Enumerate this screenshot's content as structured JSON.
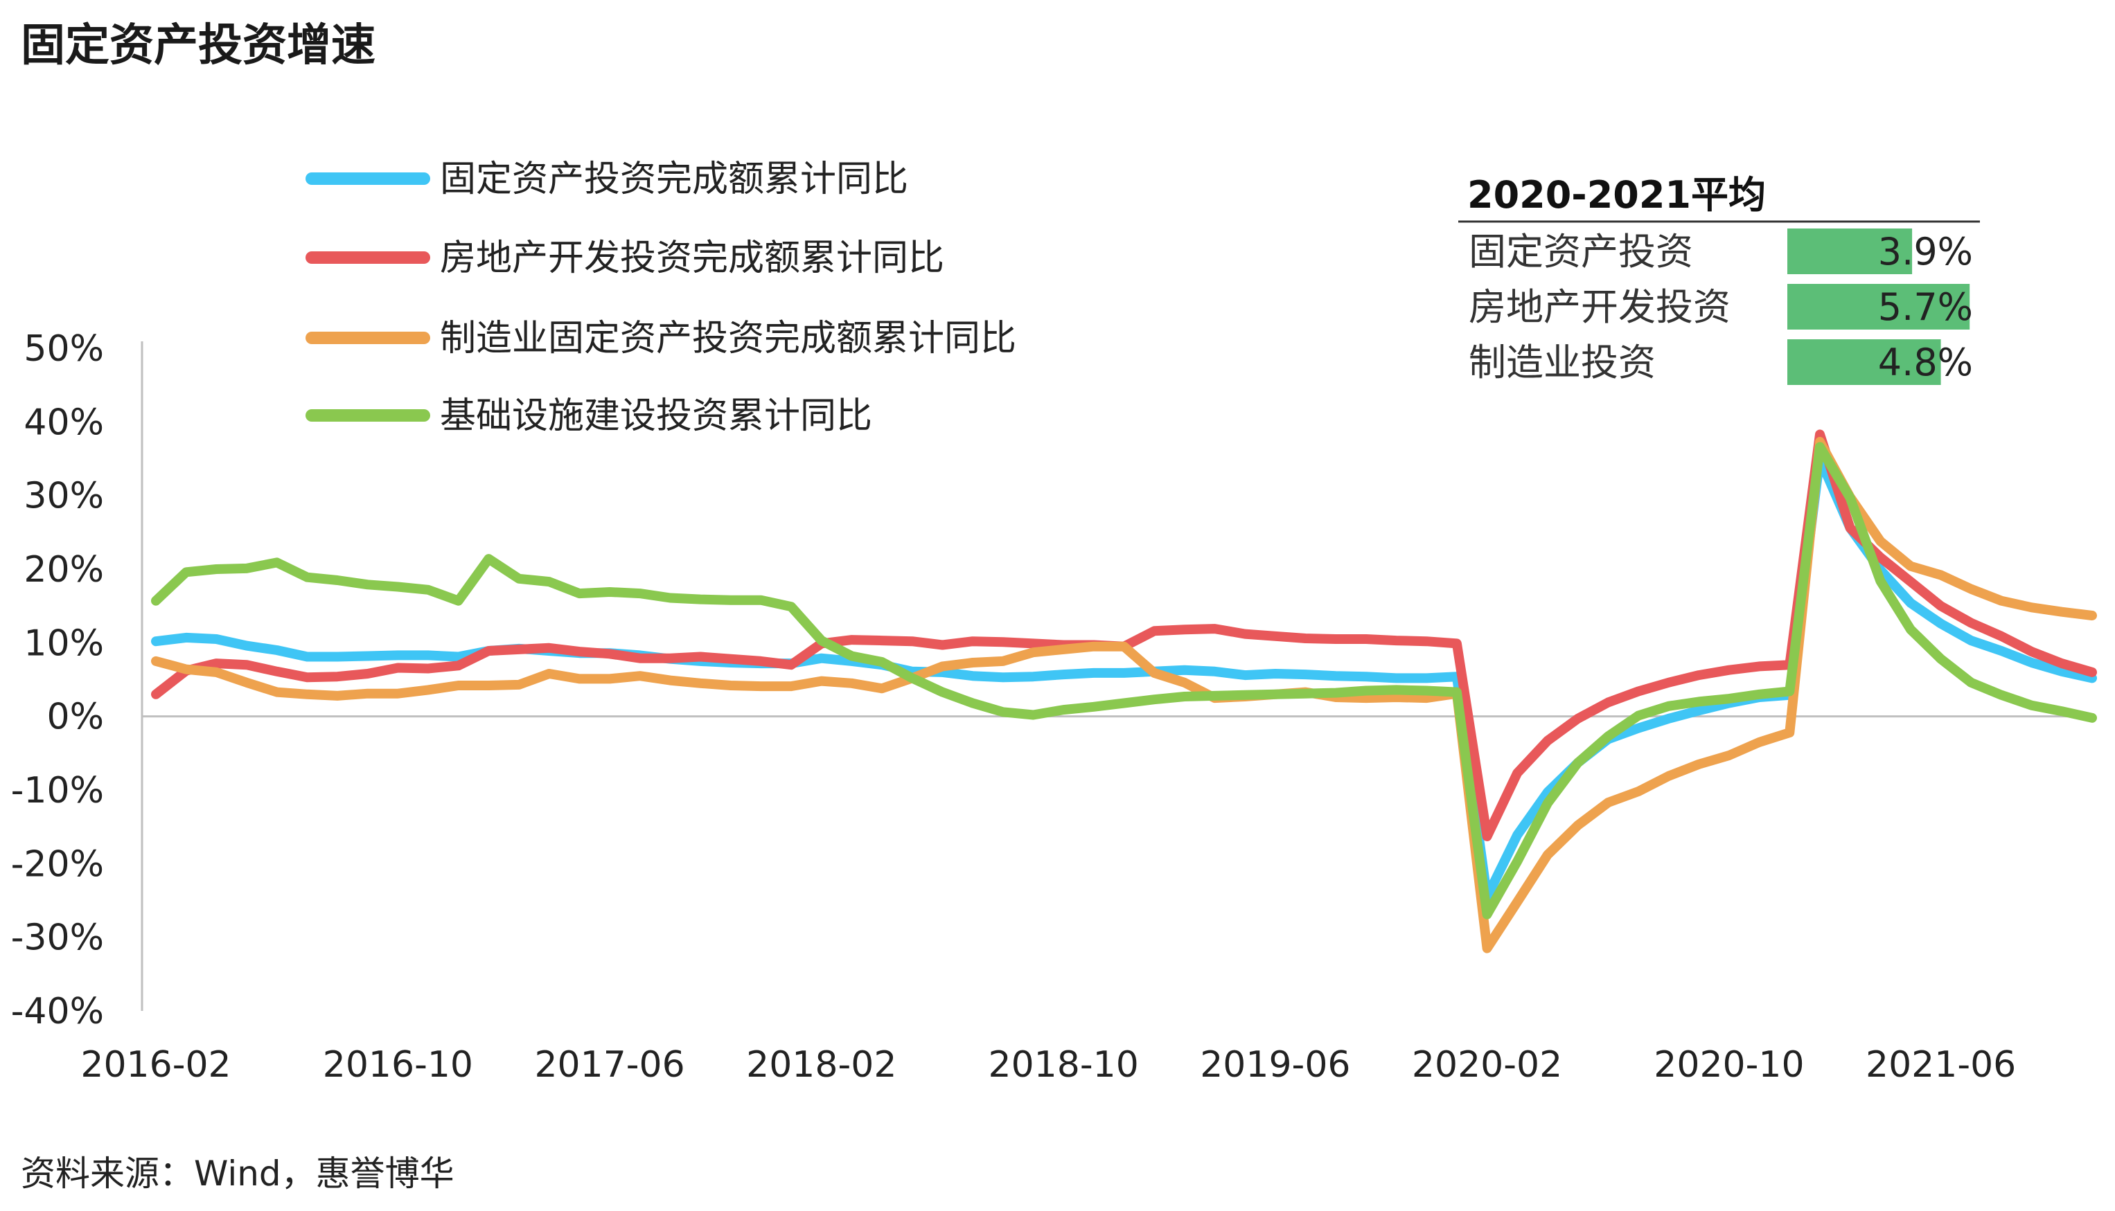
{
  "page": {
    "title": "固定资产投资增速",
    "source": "资料来源：Wind，惠誉博华"
  },
  "chart_data": {
    "type": "line",
    "title": "固定资产投资增速",
    "ylim": [
      -40,
      50
    ],
    "yticks": [
      50,
      40,
      30,
      20,
      10,
      0,
      -10,
      -20,
      -30,
      -40
    ],
    "ytick_labels": [
      "50%",
      "40%",
      "30%",
      "20%",
      "10%",
      "0%",
      "-10%",
      "-20%",
      "-30%",
      "-40%"
    ],
    "xtick_labels": [
      "2016-02",
      "2016-10",
      "2017-06",
      "2018-02",
      "2018-10",
      "2019-06",
      "2020-02",
      "2020-10",
      "2021-06"
    ],
    "x_start": "2016-02",
    "x_end": "2021-11",
    "grid": false,
    "legend_position": "top-left",
    "x": [
      "2016-02",
      "2016-03",
      "2016-04",
      "2016-05",
      "2016-06",
      "2016-07",
      "2016-08",
      "2016-09",
      "2016-10",
      "2016-11",
      "2016-12",
      "2017-02",
      "2017-03",
      "2017-04",
      "2017-05",
      "2017-06",
      "2017-07",
      "2017-08",
      "2017-09",
      "2017-10",
      "2017-11",
      "2017-12",
      "2018-02",
      "2018-03",
      "2018-04",
      "2018-05",
      "2018-06",
      "2018-07",
      "2018-08",
      "2018-09",
      "2018-10",
      "2018-11",
      "2018-12",
      "2019-02",
      "2019-03",
      "2019-04",
      "2019-05",
      "2019-06",
      "2019-07",
      "2019-08",
      "2019-09",
      "2019-10",
      "2019-11",
      "2019-12",
      "2020-02",
      "2020-03",
      "2020-04",
      "2020-05",
      "2020-06",
      "2020-07",
      "2020-08",
      "2020-09",
      "2020-10",
      "2020-11",
      "2020-12",
      "2021-02",
      "2021-03",
      "2021-04",
      "2021-05",
      "2021-06",
      "2021-07",
      "2021-08",
      "2021-09",
      "2021-10",
      "2021-11"
    ],
    "series": [
      {
        "name": "固定资产投资完成额累计同比",
        "color": "#3fc5f5",
        "values": [
          10.2,
          10.7,
          10.5,
          9.6,
          9.0,
          8.1,
          8.1,
          8.2,
          8.3,
          8.3,
          8.1,
          8.9,
          9.2,
          8.9,
          8.6,
          8.6,
          8.3,
          7.8,
          7.5,
          7.3,
          7.2,
          7.2,
          7.9,
          7.5,
          7.0,
          6.1,
          6.0,
          5.5,
          5.3,
          5.4,
          5.7,
          5.9,
          5.9,
          6.1,
          6.3,
          6.1,
          5.6,
          5.8,
          5.7,
          5.5,
          5.4,
          5.2,
          5.2,
          5.4,
          -24.5,
          -16.1,
          -10.3,
          -6.3,
          -3.1,
          -1.6,
          -0.3,
          0.8,
          1.8,
          2.6,
          2.9,
          35.0,
          25.6,
          19.9,
          15.4,
          12.6,
          10.3,
          8.9,
          7.3,
          6.1,
          5.2
        ]
      },
      {
        "name": "房地产开发投资完成额累计同比",
        "color": "#e8585a",
        "values": [
          3.0,
          6.2,
          7.2,
          7.0,
          6.1,
          5.3,
          5.4,
          5.8,
          6.6,
          6.5,
          6.9,
          8.9,
          9.1,
          9.3,
          8.8,
          8.5,
          7.9,
          7.9,
          8.1,
          7.8,
          7.5,
          7.0,
          9.9,
          10.4,
          10.3,
          10.2,
          9.7,
          10.2,
          10.1,
          9.9,
          9.7,
          9.7,
          9.5,
          11.6,
          11.8,
          11.9,
          11.2,
          10.9,
          10.6,
          10.5,
          10.5,
          10.3,
          10.2,
          9.9,
          -16.3,
          -7.7,
          -3.3,
          -0.3,
          1.9,
          3.4,
          4.6,
          5.6,
          6.3,
          6.8,
          7.0,
          38.3,
          25.6,
          21.6,
          18.3,
          15.0,
          12.7,
          10.9,
          8.8,
          7.2,
          6.0
        ]
      },
      {
        "name": "制造业固定资产投资完成额累计同比",
        "color": "#eea24e",
        "values": [
          7.5,
          6.4,
          6.0,
          4.6,
          3.3,
          3.0,
          2.8,
          3.1,
          3.1,
          3.6,
          4.2,
          4.2,
          4.3,
          5.8,
          5.1,
          5.1,
          5.5,
          4.9,
          4.5,
          4.2,
          4.1,
          4.1,
          4.8,
          4.5,
          3.8,
          5.2,
          6.8,
          7.3,
          7.5,
          8.7,
          9.1,
          9.5,
          9.5,
          5.9,
          4.6,
          2.5,
          2.7,
          3.0,
          3.3,
          2.6,
          2.5,
          2.6,
          2.5,
          3.1,
          -31.5,
          -25.2,
          -18.8,
          -14.8,
          -11.7,
          -10.2,
          -8.1,
          -6.5,
          -5.3,
          -3.5,
          -2.2,
          37.3,
          29.8,
          23.8,
          20.4,
          19.2,
          17.3,
          15.7,
          14.8,
          14.2,
          13.7
        ]
      },
      {
        "name": "基础设施建设投资累计同比",
        "color": "#8ac84f",
        "values": [
          15.7,
          19.6,
          20.0,
          20.1,
          20.9,
          18.9,
          18.5,
          17.9,
          17.6,
          17.2,
          15.7,
          21.4,
          18.7,
          18.3,
          16.7,
          16.9,
          16.7,
          16.1,
          15.9,
          15.8,
          15.8,
          14.9,
          10.3,
          8.2,
          7.4,
          5.2,
          3.3,
          1.8,
          0.6,
          0.2,
          0.9,
          1.3,
          1.8,
          2.3,
          2.7,
          2.8,
          2.9,
          3.0,
          3.1,
          3.2,
          3.5,
          3.6,
          3.5,
          3.3,
          -26.9,
          -19.7,
          -11.8,
          -6.3,
          -2.7,
          0.1,
          1.4,
          2.0,
          2.4,
          3.0,
          3.4,
          36.6,
          29.7,
          18.4,
          11.8,
          7.8,
          4.6,
          2.9,
          1.5,
          0.7,
          -0.2
        ]
      }
    ],
    "inset": {
      "title": "2020-2021平均",
      "bar_color": "#5cbe77",
      "max_value": 6.0,
      "rows": [
        {
          "label": "固定资产投资",
          "value": 3.9,
          "value_label": "3.9%"
        },
        {
          "label": "房地产开发投资",
          "value": 5.7,
          "value_label": "5.7%"
        },
        {
          "label": "制造业投资",
          "value": 4.8,
          "value_label": "4.8%"
        }
      ]
    }
  }
}
